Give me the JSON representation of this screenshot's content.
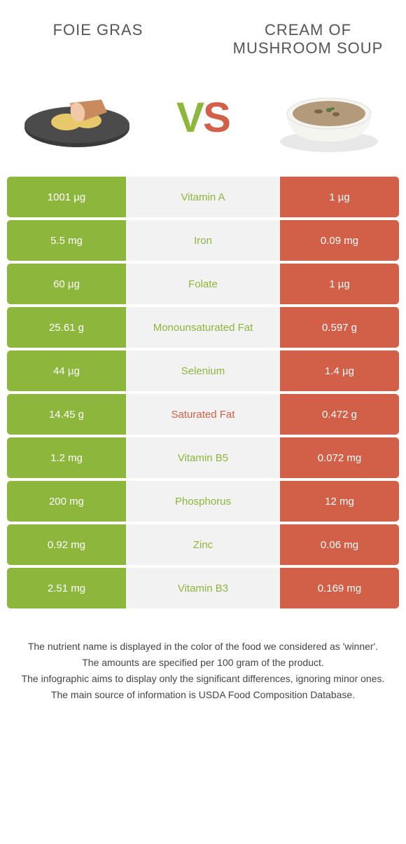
{
  "colors": {
    "left": "#8cb63c",
    "right": "#d25f47",
    "mid_bg": "#f2f2f2",
    "winner_left_text": "#8cb63c",
    "winner_right_text": "#d25f47"
  },
  "foods": {
    "left": {
      "title": "Foie gras"
    },
    "right": {
      "title": "Cream of mushroom soup"
    }
  },
  "vs": {
    "v": "V",
    "s": "S"
  },
  "rows": [
    {
      "left": "1001 µg",
      "name": "Vitamin A",
      "right": "1 µg",
      "winner": "left"
    },
    {
      "left": "5.5 mg",
      "name": "Iron",
      "right": "0.09 mg",
      "winner": "left"
    },
    {
      "left": "60 µg",
      "name": "Folate",
      "right": "1 µg",
      "winner": "left"
    },
    {
      "left": "25.61 g",
      "name": "Monounsaturated Fat",
      "right": "0.597 g",
      "winner": "left"
    },
    {
      "left": "44 µg",
      "name": "Selenium",
      "right": "1.4 µg",
      "winner": "left"
    },
    {
      "left": "14.45 g",
      "name": "Saturated Fat",
      "right": "0.472 g",
      "winner": "right"
    },
    {
      "left": "1.2 mg",
      "name": "Vitamin B5",
      "right": "0.072 mg",
      "winner": "left"
    },
    {
      "left": "200 mg",
      "name": "Phosphorus",
      "right": "12 mg",
      "winner": "left"
    },
    {
      "left": "0.92 mg",
      "name": "Zinc",
      "right": "0.06 mg",
      "winner": "left"
    },
    {
      "left": "2.51 mg",
      "name": "Vitamin B3",
      "right": "0.169 mg",
      "winner": "left"
    }
  ],
  "footnotes": [
    "The nutrient name is displayed in the color of the food we considered as 'winner'.",
    "The amounts are specified per 100 gram of the product.",
    "The infographic aims to display only the significant differences, ignoring minor ones.",
    "The main source of information is USDA Food Composition Database."
  ]
}
